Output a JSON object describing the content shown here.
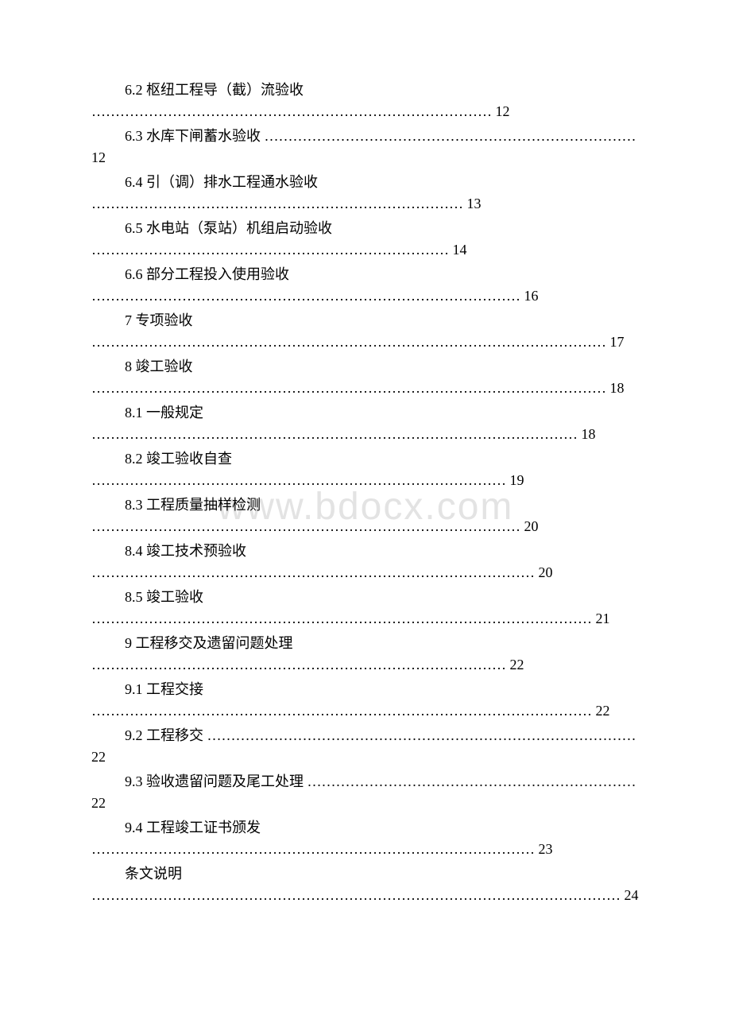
{
  "watermark": "www.bdocx.com",
  "entries": [
    {
      "title": "6.2 枢纽工程导（截）流验收",
      "page": "12",
      "style": "twoline",
      "dots": "…………………………………………………………………………"
    },
    {
      "title": "6.3 水库下闸蓄水验收",
      "page": "12",
      "style": "inline-wrap",
      "dots": "……………………………………………………………………"
    },
    {
      "title": "6.4 引（调）排水工程通水验收",
      "page": "13",
      "style": "twoline",
      "dots": "……………………………………………………………………"
    },
    {
      "title": "6.5 水电站（泵站）机组启动验收",
      "page": "14",
      "style": "twoline",
      "dots": "…………………………………………………………………"
    },
    {
      "title": "6.6 部分工程投入使用验收",
      "page": "16",
      "style": "twoline",
      "dots": "………………………………………………………………………………"
    },
    {
      "title": "7 专项验收",
      "page": "17",
      "style": "twoline",
      "dots": "………………………………………………………………………………………………"
    },
    {
      "title": "8 竣工验收",
      "page": "18",
      "style": "twoline",
      "dots": "………………………………………………………………………………………………"
    },
    {
      "title": "8.1 一般规定",
      "page": "18",
      "style": "twoline",
      "dots": "…………………………………………………………………………………………"
    },
    {
      "title": "8.2 竣工验收自查",
      "page": "19",
      "style": "twoline",
      "dots": "……………………………………………………………………………"
    },
    {
      "title": "8.3 工程质量抽样检测",
      "page": "20",
      "style": "twoline",
      "dots": "………………………………………………………………………………"
    },
    {
      "title": "8.4 竣工技术预验收",
      "page": "20",
      "style": "twoline",
      "dots": "…………………………………………………………………………………"
    },
    {
      "title": "8.5 竣工验收",
      "page": "21",
      "style": "twoline",
      "dots": "……………………………………………………………………………………………"
    },
    {
      "title": "9 工程移交及遗留问题处理",
      "page": "22",
      "style": "twoline",
      "dots": "……………………………………………………………………………"
    },
    {
      "title": "9.1 工程交接",
      "page": "22",
      "style": "twoline",
      "dots": "……………………………………………………………………………………………"
    },
    {
      "title": "9.2 工程移交",
      "page": "22",
      "style": "inline-wrap",
      "dots": "………………………………………………………………………………"
    },
    {
      "title": "9.3 验收遗留问题及尾工处理",
      "page": "22",
      "style": "inline-wrap",
      "dots": "……………………………………………………………"
    },
    {
      "title": "9.4 工程竣工证书颁发",
      "page": "23",
      "style": "twoline",
      "dots": "…………………………………………………………………………………"
    },
    {
      "title": "条文说明",
      "page": "24",
      "style": "twoline",
      "dots": "…………………………………………………………………………………………………"
    }
  ]
}
